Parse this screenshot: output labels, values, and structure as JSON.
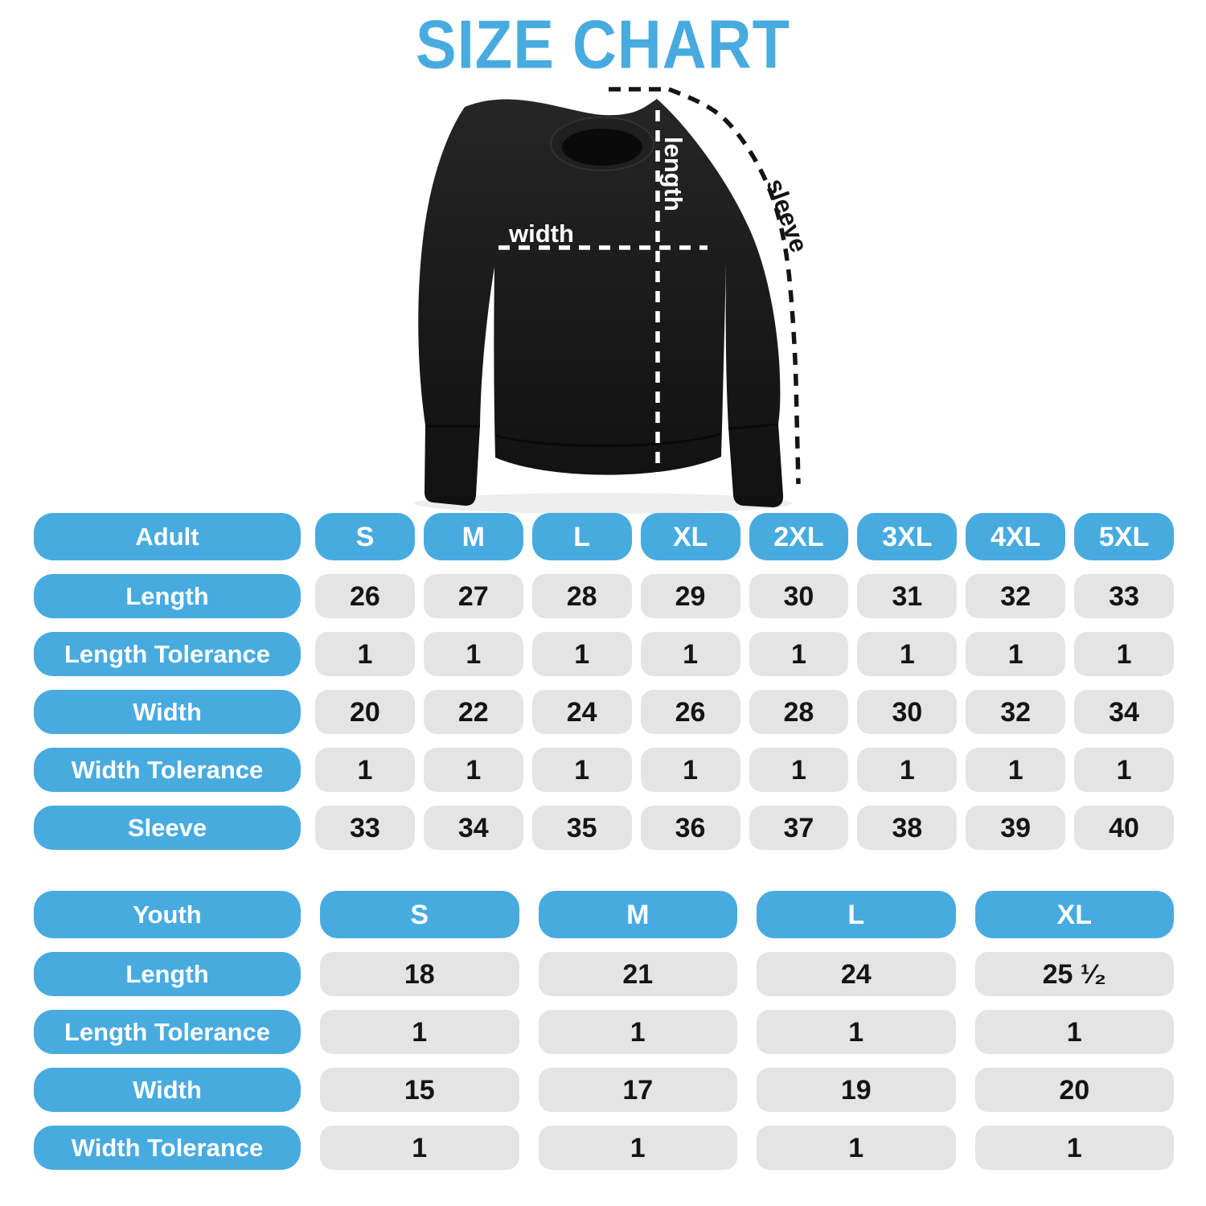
{
  "title": "SIZE CHART",
  "colors": {
    "accent": "#48ABE0",
    "cell_bg": "#E4E4E4",
    "cell_text": "#141414",
    "garment": "#1a1a1a",
    "measure_line_light": "#ffffff",
    "measure_line_dark": "#151515"
  },
  "diagram": {
    "width_label": "width",
    "length_label": "length",
    "sleeve_label": "sleeve"
  },
  "adult_table": {
    "header_label": "Adult",
    "sizes": [
      "S",
      "M",
      "L",
      "XL",
      "2XL",
      "3XL",
      "4XL",
      "5XL"
    ],
    "rows": [
      {
        "label": "Length",
        "values": [
          "26",
          "27",
          "28",
          "29",
          "30",
          "31",
          "32",
          "33"
        ]
      },
      {
        "label": "Length Tolerance",
        "values": [
          "1",
          "1",
          "1",
          "1",
          "1",
          "1",
          "1",
          "1"
        ]
      },
      {
        "label": "Width",
        "values": [
          "20",
          "22",
          "24",
          "26",
          "28",
          "30",
          "32",
          "34"
        ]
      },
      {
        "label": "Width Tolerance",
        "values": [
          "1",
          "1",
          "1",
          "1",
          "1",
          "1",
          "1",
          "1"
        ]
      },
      {
        "label": "Sleeve",
        "values": [
          "33",
          "34",
          "35",
          "36",
          "37",
          "38",
          "39",
          "40"
        ]
      }
    ]
  },
  "youth_table": {
    "header_label": "Youth",
    "sizes": [
      "S",
      "M",
      "L",
      "XL"
    ],
    "rows": [
      {
        "label": "Length",
        "values": [
          "18",
          "21",
          "24",
          "25 ¹⁄₂"
        ]
      },
      {
        "label": "Length Tolerance",
        "values": [
          "1",
          "1",
          "1",
          "1"
        ]
      },
      {
        "label": "Width",
        "values": [
          "15",
          "17",
          "19",
          "20"
        ]
      },
      {
        "label": "Width Tolerance",
        "values": [
          "1",
          "1",
          "1",
          "1"
        ]
      }
    ]
  }
}
